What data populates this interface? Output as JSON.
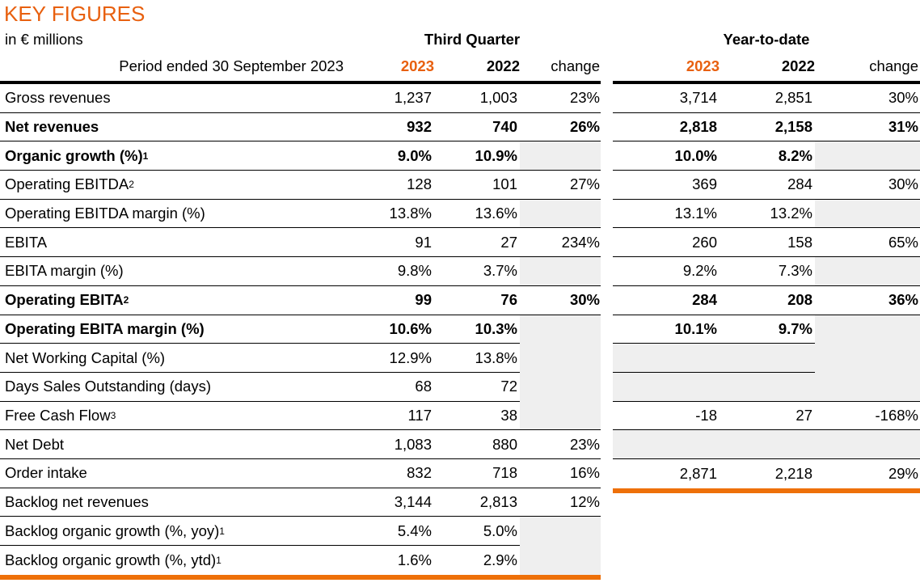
{
  "title": "KEY FIGURES",
  "unit_note": "in € millions",
  "period_note": "Period ended 30 September 2023",
  "groups": {
    "q3_title": "Third Quarter",
    "ytd_title": "Year-to-date"
  },
  "columns": [
    "2023",
    "2022",
    "change"
  ],
  "colors": {
    "accent_orange": "#E8600F",
    "bottom_border_orange": "#EE7009",
    "header_border_black": "#000000",
    "shaded_cell_grey": "#EFEFEF"
  },
  "table": {
    "rows": [
      {
        "label": "Gross revenues",
        "sup": null,
        "bold": false,
        "q3": [
          "1,237",
          "1,003",
          "23%"
        ],
        "ytd": [
          "3,714",
          "2,851",
          "30%"
        ]
      },
      {
        "label": "Net revenues",
        "sup": null,
        "bold": true,
        "q3": [
          "932",
          "740",
          "26%"
        ],
        "ytd": [
          "2,818",
          "2,158",
          "31%"
        ]
      },
      {
        "label": "Organic growth (%)",
        "sup": "1",
        "bold": true,
        "q3": [
          "9.0%",
          "10.9%",
          null
        ],
        "ytd": [
          "10.0%",
          "8.2%",
          null
        ]
      },
      {
        "label": "Operating EBITDA",
        "sup": "2",
        "bold": false,
        "q3": [
          "128",
          "101",
          "27%"
        ],
        "ytd": [
          "369",
          "284",
          "30%"
        ]
      },
      {
        "label": "Operating EBITDA margin (%)",
        "sup": null,
        "bold": false,
        "q3": [
          "13.8%",
          "13.6%",
          null
        ],
        "ytd": [
          "13.1%",
          "13.2%",
          null
        ]
      },
      {
        "label": "EBITA",
        "sup": null,
        "bold": false,
        "q3": [
          "91",
          "27",
          "234%"
        ],
        "ytd": [
          "260",
          "158",
          "65%"
        ]
      },
      {
        "label": "EBITA margin (%)",
        "sup": null,
        "bold": false,
        "q3": [
          "9.8%",
          "3.7%",
          null
        ],
        "ytd": [
          "9.2%",
          "7.3%",
          null
        ]
      },
      {
        "label": "Operating EBITA",
        "sup": "2",
        "bold": true,
        "q3": [
          "99",
          "76",
          "30%"
        ],
        "ytd": [
          "284",
          "208",
          "36%"
        ]
      },
      {
        "label": "Operating EBITA margin (%)",
        "sup": null,
        "bold": true,
        "q3": [
          "10.6%",
          "10.3%",
          null
        ],
        "ytd": [
          "10.1%",
          "9.7%",
          null
        ]
      },
      {
        "label": "Net Working Capital (%)",
        "sup": null,
        "bold": false,
        "q3": [
          "12.9%",
          "13.8%",
          null
        ],
        "ytd": [
          null,
          null,
          null
        ]
      },
      {
        "label": "Days Sales Outstanding (days)",
        "sup": null,
        "bold": false,
        "q3": [
          "68",
          "72",
          null
        ],
        "ytd": [
          null,
          null,
          null
        ]
      },
      {
        "label": "Free Cash Flow",
        "sup": "3",
        "bold": false,
        "q3": [
          "117",
          "38",
          null
        ],
        "ytd": [
          "-18",
          "27",
          "-168%"
        ]
      },
      {
        "label": "Net Debt",
        "sup": null,
        "bold": false,
        "q3": [
          "1,083",
          "880",
          "23%"
        ],
        "ytd": [
          null,
          null,
          null
        ]
      },
      {
        "label": "Order intake",
        "sup": null,
        "bold": false,
        "q3": [
          "832",
          "718",
          "16%"
        ],
        "ytd": [
          "2,871",
          "2,218",
          "29%"
        ]
      },
      {
        "label": "Backlog net revenues",
        "sup": null,
        "bold": false,
        "q3": [
          "3,144",
          "2,813",
          "12%"
        ],
        "ytd": null
      },
      {
        "label": "Backlog organic growth (%, yoy)",
        "sup": "1",
        "bold": false,
        "q3": [
          "5.4%",
          "5.0%",
          null
        ],
        "ytd": null
      },
      {
        "label": "Backlog organic growth (%, ytd)",
        "sup": "1",
        "bold": false,
        "q3": [
          "1.6%",
          "2.9%",
          null
        ],
        "ytd": null
      }
    ]
  }
}
